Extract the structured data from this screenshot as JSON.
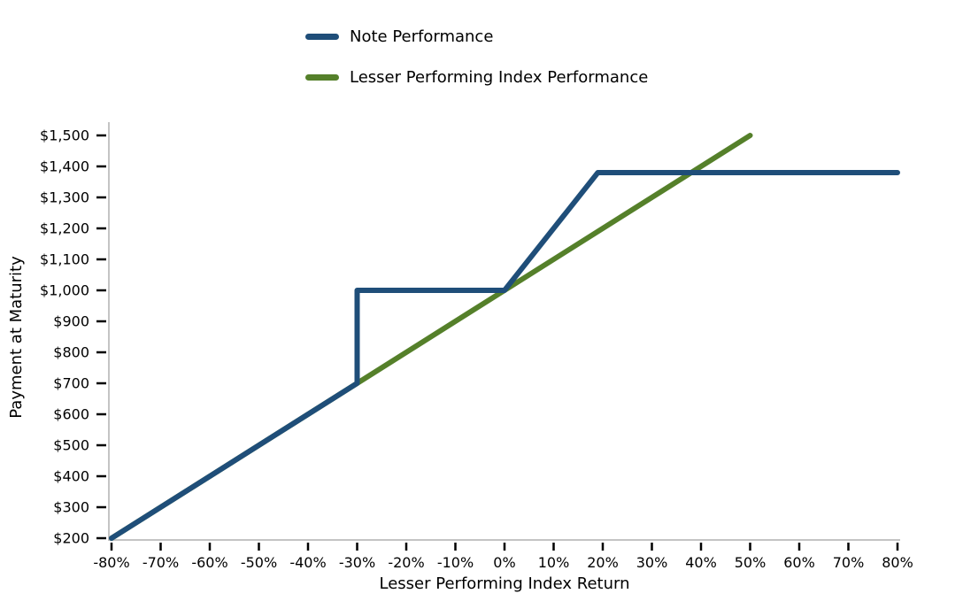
{
  "figure": {
    "background_color": "#ffffff",
    "legend": {
      "items": [
        {
          "label": "Note Performance",
          "color": "#1f4e79"
        },
        {
          "label": "Lesser Performing Index Performance",
          "color": "#55802a"
        }
      ]
    },
    "x_axis": {
      "label": "Lesser Performing Index Return",
      "ticks": [
        {
          "v": -80,
          "label": "-80%"
        },
        {
          "v": -70,
          "label": "-70%"
        },
        {
          "v": -60,
          "label": "-60%"
        },
        {
          "v": -50,
          "label": "-50%"
        },
        {
          "v": -40,
          "label": "-40%"
        },
        {
          "v": -30,
          "label": "-30%"
        },
        {
          "v": -20,
          "label": "-20%"
        },
        {
          "v": -10,
          "label": "-10%"
        },
        {
          "v": 0,
          "label": "0%"
        },
        {
          "v": 10,
          "label": "10%"
        },
        {
          "v": 20,
          "label": "20%"
        },
        {
          "v": 30,
          "label": "30%"
        },
        {
          "v": 40,
          "label": "40%"
        },
        {
          "v": 50,
          "label": "50%"
        },
        {
          "v": 60,
          "label": "60%"
        },
        {
          "v": 70,
          "label": "70%"
        },
        {
          "v": 80,
          "label": "80%"
        }
      ]
    },
    "y_axis": {
      "label": "Payment at Maturity",
      "ticks": [
        {
          "v": 200,
          "label": "$200"
        },
        {
          "v": 300,
          "label": "$300"
        },
        {
          "v": 400,
          "label": "$400"
        },
        {
          "v": 500,
          "label": "$500"
        },
        {
          "v": 600,
          "label": "$600"
        },
        {
          "v": 700,
          "label": "$700"
        },
        {
          "v": 800,
          "label": "$800"
        },
        {
          "v": 900,
          "label": "$900"
        },
        {
          "v": 1000,
          "label": "$1,000"
        },
        {
          "v": 1100,
          "label": "$1,100"
        },
        {
          "v": 1200,
          "label": "$1,200"
        },
        {
          "v": 1300,
          "label": "$1,300"
        },
        {
          "v": 1400,
          "label": "$1,400"
        },
        {
          "v": 1500,
          "label": "$1,500"
        }
      ]
    },
    "style": {
      "spine_color": "#c4c4c4",
      "tick_color": "#000000",
      "text_color": "#000000",
      "series_line_width": 6
    }
  },
  "chart_data": {
    "type": "line",
    "title": "",
    "xlabel": "Lesser Performing Index Return",
    "ylabel": "Payment at Maturity",
    "xlim": [
      -80,
      80
    ],
    "ylim": [
      200,
      1500
    ],
    "x_tick_step": 10,
    "y_tick_step": 100,
    "x_unit": "percent",
    "y_unit": "USD",
    "grid": false,
    "legend_position": "top",
    "series": [
      {
        "name": "Note Performance",
        "color": "#1f4e79",
        "points": [
          [
            -80,
            200
          ],
          [
            -30,
            700
          ],
          [
            -30,
            1000
          ],
          [
            0,
            1000
          ],
          [
            19,
            1380
          ],
          [
            80,
            1380
          ]
        ]
      },
      {
        "name": "Lesser Performing Index Performance",
        "color": "#55802a",
        "points": [
          [
            -80,
            200
          ],
          [
            50,
            1500
          ]
        ]
      }
    ]
  }
}
